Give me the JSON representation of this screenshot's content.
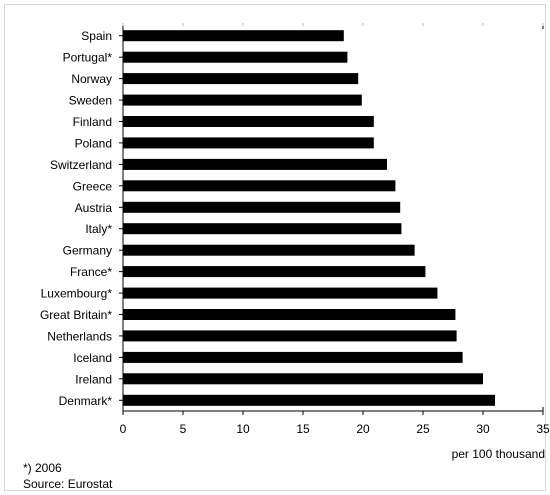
{
  "chart_data": {
    "type": "bar",
    "orientation": "horizontal",
    "categories": [
      "Spain",
      "Portugal*",
      "Norway",
      "Sweden",
      "Finland",
      "Poland",
      "Switzerland",
      "Greece",
      "Austria",
      "Italy*",
      "Germany",
      "France*",
      "Luxembourg*",
      "Great Britain*",
      "Netherlands",
      "Iceland",
      "Ireland",
      "Denmark*"
    ],
    "values": [
      18.4,
      18.7,
      19.6,
      19.9,
      20.9,
      20.9,
      22.0,
      22.7,
      23.1,
      23.2,
      24.3,
      25.2,
      26.2,
      27.7,
      27.8,
      28.3,
      30.0,
      31.0
    ],
    "xlim": [
      0,
      35
    ],
    "x_ticks": [
      0,
      5,
      10,
      15,
      20,
      25,
      30,
      35
    ],
    "xlabel": "per 100 thousand",
    "bar_color": "#000000",
    "grid": false
  },
  "footnote": "*) 2006",
  "source": "Source: Eurostat"
}
